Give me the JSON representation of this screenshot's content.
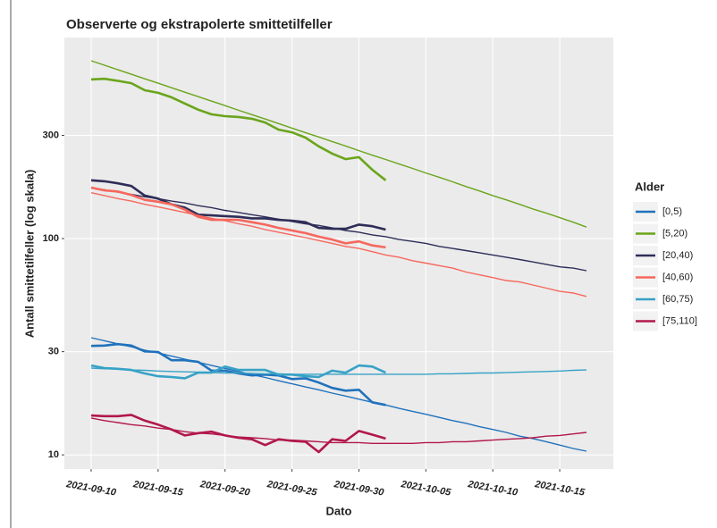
{
  "chart_data": {
    "type": "line",
    "title": "Observerte og ekstrapolerte smittetilfeller",
    "x_label": "Dato",
    "y_label": "Antall smittetilfeller (log skala)",
    "legend_title": "Alder",
    "legend_position": "right",
    "log_y": true,
    "grid": true,
    "xlim": [
      "2021-09-08",
      "2021-10-19"
    ],
    "xticks": [
      "2021-09-10",
      "2021-09-15",
      "2021-09-20",
      "2021-09-25",
      "2021-09-30",
      "2021-10-05",
      "2021-10-10",
      "2021-10-15"
    ],
    "ylim": [
      8.6,
      850
    ],
    "yticks": [
      10,
      30,
      100,
      300
    ],
    "x": [
      "2021-09-10",
      "2021-09-11",
      "2021-09-12",
      "2021-09-13",
      "2021-09-14",
      "2021-09-15",
      "2021-09-16",
      "2021-09-17",
      "2021-09-18",
      "2021-09-19",
      "2021-09-20",
      "2021-09-21",
      "2021-09-22",
      "2021-09-23",
      "2021-09-24",
      "2021-09-25",
      "2021-09-26",
      "2021-09-27",
      "2021-09-28",
      "2021-09-29",
      "2021-09-30",
      "2021-10-01",
      "2021-10-02",
      "2021-10-03",
      "2021-10-04",
      "2021-10-05",
      "2021-10-06",
      "2021-10-07",
      "2021-10-08",
      "2021-10-09",
      "2021-10-10",
      "2021-10-11",
      "2021-10-12",
      "2021-10-13",
      "2021-10-14",
      "2021-10-15",
      "2021-10-16",
      "2021-10-17"
    ],
    "series": [
      {
        "name": "[0,5)",
        "color": "#1f72bd",
        "values": [
          31.9,
          32,
          32.5,
          32,
          30.1,
          29.9,
          27.4,
          27.4,
          26.9,
          24.5,
          24.5,
          23.8,
          23.3,
          23.5,
          23.3,
          22.4,
          22.6,
          21.6,
          20.4,
          19.8,
          20.0,
          17.5,
          17.0,
          null,
          null,
          null,
          null,
          null,
          null,
          null,
          null,
          null,
          null,
          null,
          null,
          null,
          null,
          null
        ],
        "fit": [
          34.8,
          33.7,
          32.6,
          31.6,
          30.5,
          29.6,
          28.6,
          27.7,
          26.8,
          25.9,
          25.1,
          24.3,
          23.5,
          22.8,
          22.0,
          21.3,
          20.6,
          20.0,
          19.3,
          18.7,
          18.1,
          17.5,
          17.0,
          16.4,
          15.9,
          15.4,
          14.9,
          14.4,
          14.0,
          13.5,
          13.1,
          12.7,
          12.2,
          11.9,
          11.5,
          11.1,
          10.7,
          10.4
        ]
      },
      {
        "name": "[5,20)",
        "color": "#6aa51b",
        "values": [
          544,
          548,
          536,
          523,
          485,
          472,
          450,
          421,
          394,
          375,
          368,
          365,
          358,
          344,
          319,
          310,
          293,
          267,
          247,
          233,
          238,
          208,
          186,
          null,
          null,
          null,
          null,
          null,
          null,
          null,
          null,
          null,
          null,
          null,
          null,
          null,
          null,
          null
        ],
        "fit": [
          664,
          633,
          603,
          575,
          548,
          523,
          498,
          475,
          453,
          432,
          412,
          392,
          374,
          357,
          340,
          324,
          309,
          295,
          281,
          268,
          255,
          243,
          232,
          221,
          211,
          201,
          192,
          183,
          174,
          166,
          158,
          151,
          144,
          137,
          131,
          125,
          119,
          113
        ]
      },
      {
        "name": "[20,40)",
        "color": "#2e2d58",
        "values": [
          186,
          184,
          180,
          175,
          158,
          153,
          144,
          139,
          129,
          128,
          127,
          126,
          124,
          124,
          122,
          121,
          119,
          112,
          111,
          111,
          116,
          114,
          110,
          null,
          null,
          null,
          null,
          null,
          null,
          null,
          null,
          null,
          null,
          null,
          null,
          null,
          null,
          null
        ],
        "fit": [
          172,
          168,
          164,
          160,
          156,
          153,
          149,
          146,
          142,
          139,
          135,
          132,
          129,
          126,
          123,
          120,
          117,
          115,
          112,
          109,
          107,
          104,
          102,
          99,
          97,
          95,
          92,
          90,
          88,
          86,
          84,
          82,
          80,
          78,
          76,
          74,
          73,
          71
        ]
      },
      {
        "name": "[40,60)",
        "color": "#f6675d",
        "values": [
          172,
          167,
          165,
          159,
          151,
          148,
          144,
          136,
          126,
          122,
          122,
          122,
          119,
          116,
          112,
          109,
          106,
          102,
          99,
          95,
          97,
          93,
          91,
          null,
          null,
          null,
          null,
          null,
          null,
          null,
          null,
          null,
          null,
          null,
          null,
          null,
          null,
          null
        ],
        "fit": [
          163,
          158,
          153,
          149,
          144,
          140,
          136,
          132,
          128,
          124,
          121,
          117,
          114,
          110,
          107,
          104,
          101,
          98,
          95,
          92,
          90,
          87,
          84,
          82,
          79,
          77,
          75,
          73,
          70,
          68,
          66,
          64,
          63,
          61,
          59,
          57,
          56,
          54
        ]
      },
      {
        "name": "[60,75)",
        "color": "#37a2c6",
        "values": [
          25.9,
          25.2,
          25.0,
          24.7,
          23.8,
          23.1,
          22.9,
          22.6,
          24.0,
          24.0,
          25.6,
          24.7,
          24.7,
          24.7,
          23.5,
          23.5,
          23.1,
          22.9,
          24.5,
          24.0,
          25.9,
          25.6,
          24.0,
          null,
          null,
          null,
          null,
          null,
          null,
          null,
          null,
          null,
          null,
          null,
          null,
          null,
          null,
          null
        ],
        "fit": [
          25.2,
          25.0,
          24.9,
          24.7,
          24.6,
          24.4,
          24.3,
          24.2,
          24.1,
          24.0,
          23.9,
          23.9,
          23.8,
          23.7,
          23.7,
          23.6,
          23.6,
          23.6,
          23.6,
          23.6,
          23.6,
          23.6,
          23.6,
          23.6,
          23.6,
          23.6,
          23.7,
          23.7,
          23.8,
          23.9,
          23.9,
          24.0,
          24.1,
          24.2,
          24.3,
          24.4,
          24.6,
          24.7
        ]
      },
      {
        "name": "[75,110]",
        "color": "#b2174b",
        "values": [
          15.2,
          15.1,
          15.1,
          15.3,
          14.4,
          13.8,
          13.1,
          12.3,
          12.6,
          12.8,
          12.3,
          12.0,
          11.8,
          11.1,
          11.8,
          11.6,
          11.5,
          10.3,
          11.8,
          11.6,
          12.9,
          12.4,
          11.9,
          null,
          null,
          null,
          null,
          null,
          null,
          null,
          null,
          null,
          null,
          null,
          null,
          null,
          null,
          null
        ],
        "fit": [
          14.8,
          14.4,
          14.1,
          13.8,
          13.6,
          13.3,
          13.1,
          12.8,
          12.6,
          12.5,
          12.3,
          12.1,
          12.0,
          11.9,
          11.7,
          11.7,
          11.6,
          11.5,
          11.4,
          11.4,
          11.4,
          11.3,
          11.3,
          11.3,
          11.3,
          11.4,
          11.4,
          11.5,
          11.5,
          11.6,
          11.7,
          11.8,
          11.9,
          12.0,
          12.2,
          12.3,
          12.5,
          12.7
        ]
      }
    ]
  }
}
